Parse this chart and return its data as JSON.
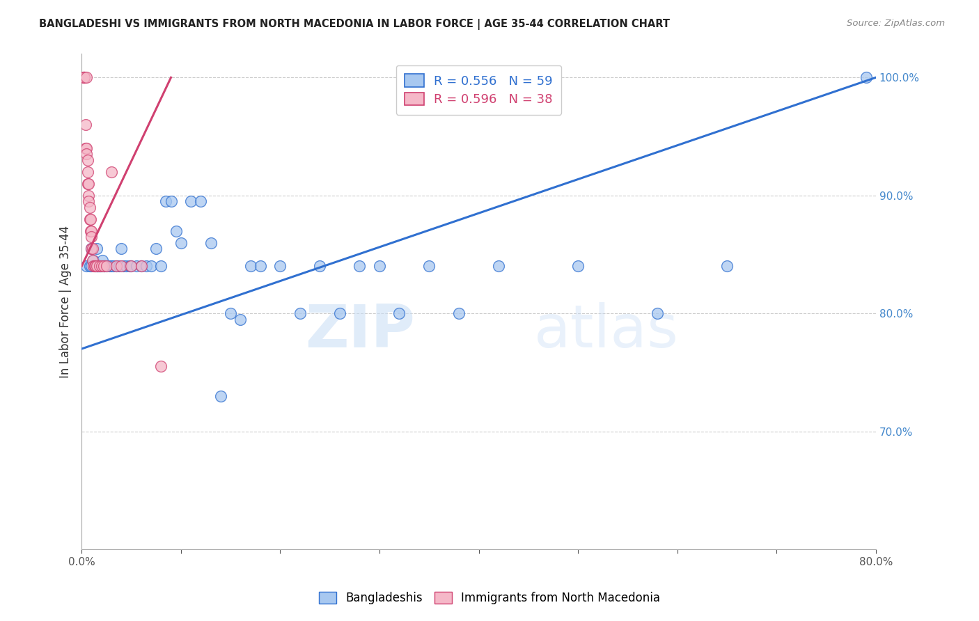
{
  "title": "BANGLADESHI VS IMMIGRANTS FROM NORTH MACEDONIA IN LABOR FORCE | AGE 35-44 CORRELATION CHART",
  "source": "Source: ZipAtlas.com",
  "ylabel": "In Labor Force | Age 35-44",
  "blue_label": "Bangladeshis",
  "pink_label": "Immigrants from North Macedonia",
  "blue_R": 0.556,
  "blue_N": 59,
  "pink_R": 0.596,
  "pink_N": 38,
  "blue_color": "#a8c8f0",
  "pink_color": "#f5b8c8",
  "blue_line_color": "#3070d0",
  "pink_line_color": "#d04070",
  "watermark_zip": "ZIP",
  "watermark_atlas": "atlas",
  "xlim": [
    0.0,
    0.8
  ],
  "ylim": [
    0.6,
    1.02
  ],
  "xticks": [
    0.0,
    0.1,
    0.2,
    0.3,
    0.4,
    0.5,
    0.6,
    0.7,
    0.8
  ],
  "xtick_labels": [
    "0.0%",
    "",
    "",
    "",
    "",
    "",
    "",
    "",
    "80.0%"
  ],
  "ytick_right": [
    0.7,
    0.8,
    0.9,
    1.0
  ],
  "ytick_right_labels": [
    "70.0%",
    "80.0%",
    "90.0%",
    "100.0%"
  ],
  "blue_x": [
    0.005,
    0.008,
    0.01,
    0.01,
    0.012,
    0.013,
    0.015,
    0.015,
    0.016,
    0.017,
    0.018,
    0.019,
    0.02,
    0.021,
    0.022,
    0.023,
    0.025,
    0.028,
    0.03,
    0.032,
    0.035,
    0.038,
    0.04,
    0.042,
    0.045,
    0.048,
    0.05,
    0.055,
    0.06,
    0.065,
    0.07,
    0.075,
    0.08,
    0.085,
    0.09,
    0.095,
    0.1,
    0.11,
    0.12,
    0.13,
    0.14,
    0.15,
    0.16,
    0.17,
    0.18,
    0.2,
    0.22,
    0.24,
    0.26,
    0.28,
    0.3,
    0.32,
    0.35,
    0.38,
    0.42,
    0.5,
    0.58,
    0.65,
    0.79
  ],
  "blue_y": [
    0.84,
    0.84,
    0.84,
    0.855,
    0.845,
    0.84,
    0.84,
    0.855,
    0.84,
    0.84,
    0.84,
    0.84,
    0.84,
    0.845,
    0.84,
    0.84,
    0.84,
    0.84,
    0.84,
    0.84,
    0.84,
    0.84,
    0.855,
    0.84,
    0.84,
    0.84,
    0.84,
    0.84,
    0.84,
    0.84,
    0.84,
    0.855,
    0.84,
    0.895,
    0.895,
    0.87,
    0.86,
    0.895,
    0.895,
    0.86,
    0.73,
    0.8,
    0.795,
    0.84,
    0.84,
    0.84,
    0.8,
    0.84,
    0.8,
    0.84,
    0.84,
    0.8,
    0.84,
    0.8,
    0.84,
    0.84,
    0.8,
    0.84,
    1.0
  ],
  "pink_x": [
    0.002,
    0.002,
    0.003,
    0.003,
    0.004,
    0.004,
    0.005,
    0.005,
    0.005,
    0.006,
    0.006,
    0.006,
    0.007,
    0.007,
    0.007,
    0.008,
    0.008,
    0.009,
    0.009,
    0.01,
    0.01,
    0.01,
    0.011,
    0.011,
    0.012,
    0.013,
    0.014,
    0.015,
    0.018,
    0.02,
    0.022,
    0.025,
    0.03,
    0.035,
    0.04,
    0.05,
    0.06,
    0.08
  ],
  "pink_y": [
    1.0,
    1.0,
    1.0,
    1.0,
    0.96,
    0.94,
    0.94,
    0.935,
    1.0,
    0.93,
    0.92,
    0.91,
    0.91,
    0.9,
    0.895,
    0.89,
    0.88,
    0.88,
    0.87,
    0.87,
    0.865,
    0.855,
    0.855,
    0.845,
    0.84,
    0.84,
    0.84,
    0.84,
    0.84,
    0.84,
    0.84,
    0.84,
    0.92,
    0.84,
    0.84,
    0.84,
    0.84,
    0.755
  ],
  "blue_line_x0": 0.0,
  "blue_line_y0": 0.77,
  "blue_line_x1": 0.8,
  "blue_line_y1": 1.0,
  "pink_line_x0": 0.0,
  "pink_line_y0": 0.84,
  "pink_line_x1": 0.09,
  "pink_line_y1": 1.0
}
